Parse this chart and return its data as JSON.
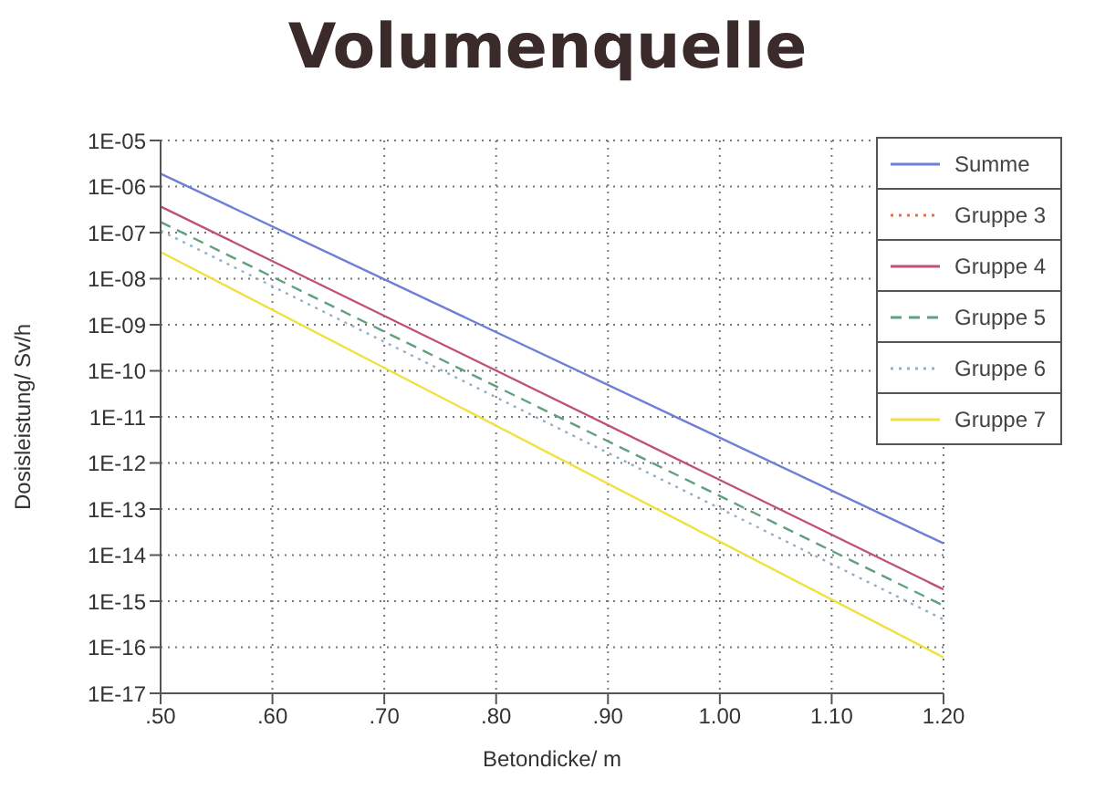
{
  "chart_data": {
    "type": "line",
    "title": "Volumenquelle",
    "xlabel": "Betondicke/ m",
    "ylabel": "Dosisleistung/ Sv/h",
    "log": "y",
    "grid": true,
    "legend": "top right",
    "xlim": [
      0.5,
      1.2
    ],
    "x": [
      0.5,
      1.2
    ],
    "xticks": [
      {
        "value": 0.5,
        "label": ".50"
      },
      {
        "value": 0.6,
        "label": ".60"
      },
      {
        "value": 0.7,
        "label": ".70"
      },
      {
        "value": 0.8,
        "label": ".80"
      },
      {
        "value": 0.9,
        "label": ".90"
      },
      {
        "value": 1.0,
        "label": "1.00"
      },
      {
        "value": 1.1,
        "label": "1.10"
      },
      {
        "value": 1.2,
        "label": "1.20"
      }
    ],
    "ylim": [
      1e-17,
      1e-05
    ],
    "yticks": [
      {
        "value": 1e-05,
        "label": "1E-05"
      },
      {
        "value": 1e-06,
        "label": "1E-06"
      },
      {
        "value": 1e-07,
        "label": "1E-07"
      },
      {
        "value": 1e-08,
        "label": "1E-08"
      },
      {
        "value": 1e-09,
        "label": "1E-09"
      },
      {
        "value": 1e-10,
        "label": "1E-10"
      },
      {
        "value": 1e-11,
        "label": "1E-11"
      },
      {
        "value": 1e-12,
        "label": "1E-12"
      },
      {
        "value": 1e-13,
        "label": "1E-13"
      },
      {
        "value": 1e-14,
        "label": "1E-14"
      },
      {
        "value": 1e-15,
        "label": "1E-15"
      },
      {
        "value": 1e-16,
        "label": "1E-16"
      },
      {
        "value": 1e-17,
        "label": "1E-17"
      }
    ],
    "series": [
      {
        "name": "Summe",
        "color": "#6f7fd8",
        "line_style": "solid",
        "values": [
          1.9e-06,
          1.8e-14
        ]
      },
      {
        "name": "Gruppe 3",
        "color": "#e07050",
        "line_style": "dotted",
        "values": [
          null,
          null
        ]
      },
      {
        "name": "Gruppe 4",
        "color": "#c0507a",
        "line_style": "solid",
        "values": [
          3.7e-07,
          1.8e-15
        ]
      },
      {
        "name": "Gruppe 5",
        "color": "#60a080",
        "line_style": "dashed",
        "values": [
          1.7e-07,
          8e-16
        ]
      },
      {
        "name": "Gruppe 6",
        "color": "#90b0c8",
        "line_style": "dotted",
        "values": [
          1.1e-07,
          4e-16
        ]
      },
      {
        "name": "Gruppe 7",
        "color": "#f0e040",
        "line_style": "solid",
        "values": [
          3.8e-08,
          6e-17
        ]
      }
    ]
  }
}
